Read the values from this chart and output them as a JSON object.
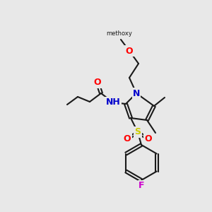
{
  "bg_color": "#e8e8e8",
  "bond_color": "#1a1a1a",
  "bond_width": 1.5,
  "atom_colors": {
    "O": "#ff0000",
    "N": "#0000cc",
    "S": "#cccc00",
    "F": "#cc00cc",
    "H": "#008080",
    "C": "#1a1a1a"
  },
  "font_size": 9,
  "font_size_small": 8
}
